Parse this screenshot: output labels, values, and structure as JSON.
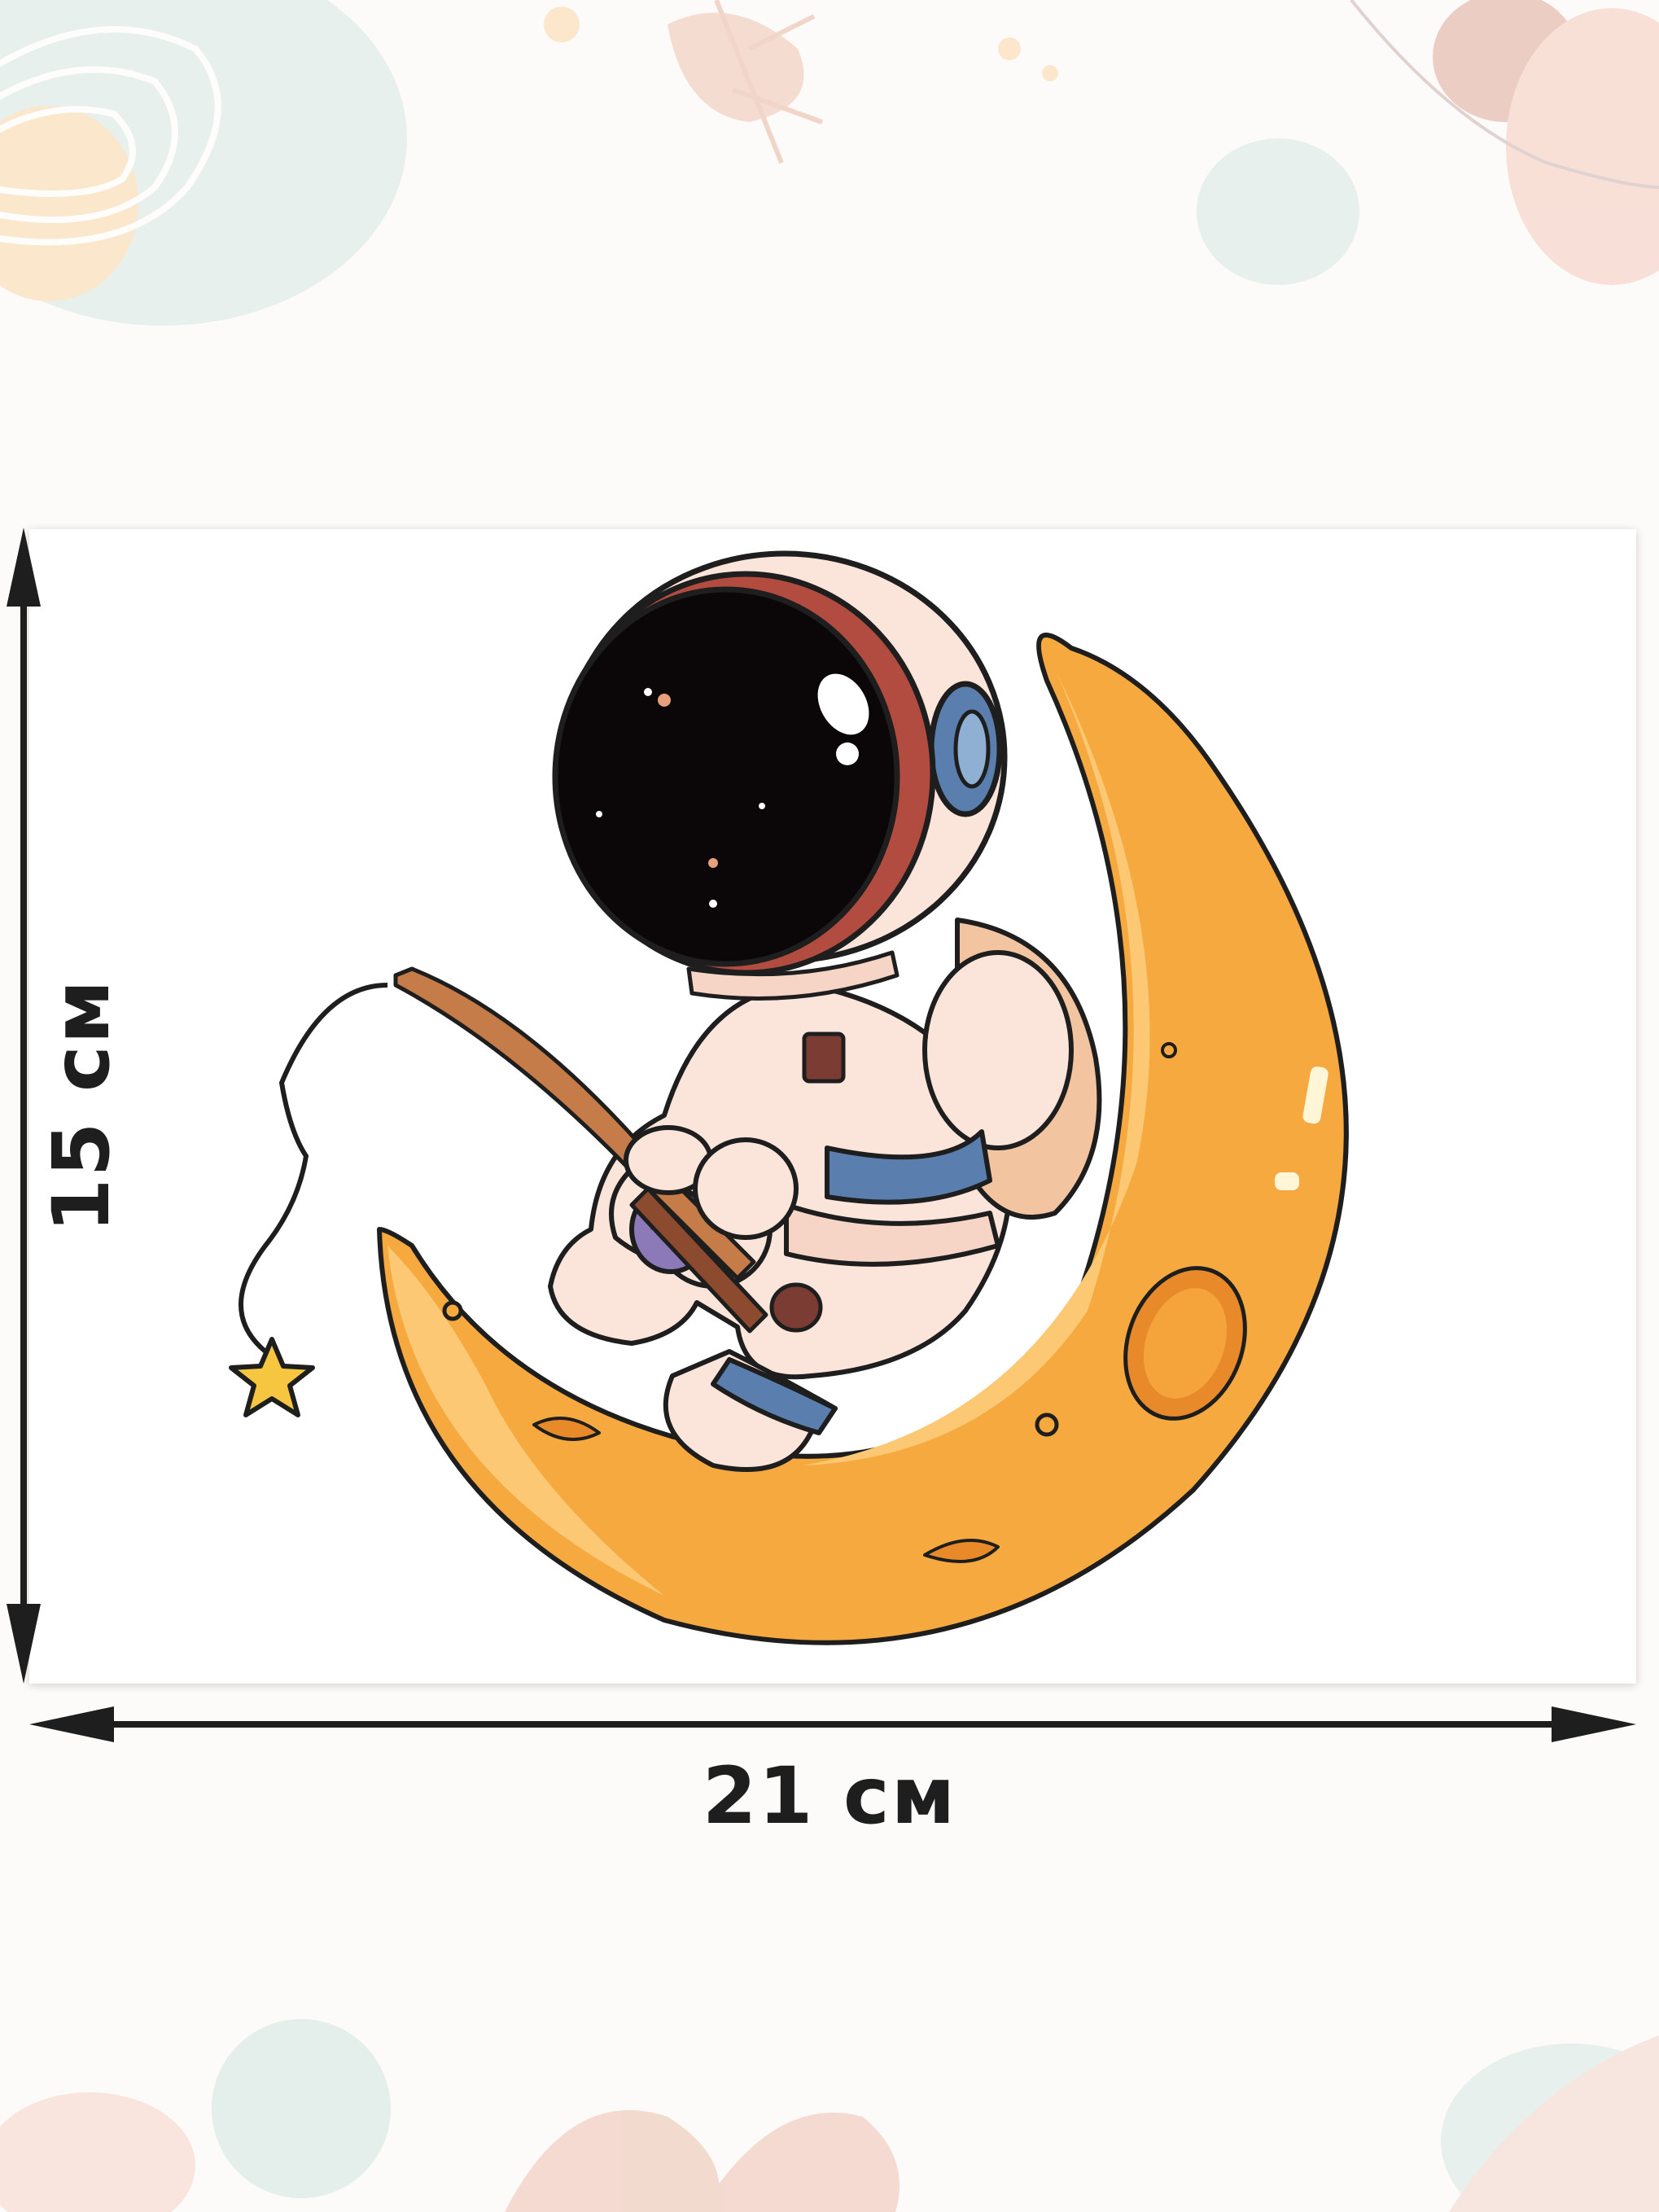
{
  "dimensions": {
    "width_label": "21 см",
    "height_label": "15 см"
  },
  "colors": {
    "moon": "#f6a93f",
    "moon_light": "#fcc874",
    "outline": "#1e1e1e",
    "suit": "#fbe4d9",
    "visor": "#0b0608",
    "accent_blue": "#5a7fae",
    "star": "#f7c640",
    "rod": "#c57c48"
  },
  "illustration": {
    "subject": "astronaut-fishing-on-moon",
    "icons": [
      "astronaut-icon",
      "crescent-moon-icon",
      "star-icon",
      "fishing-rod-icon"
    ]
  }
}
